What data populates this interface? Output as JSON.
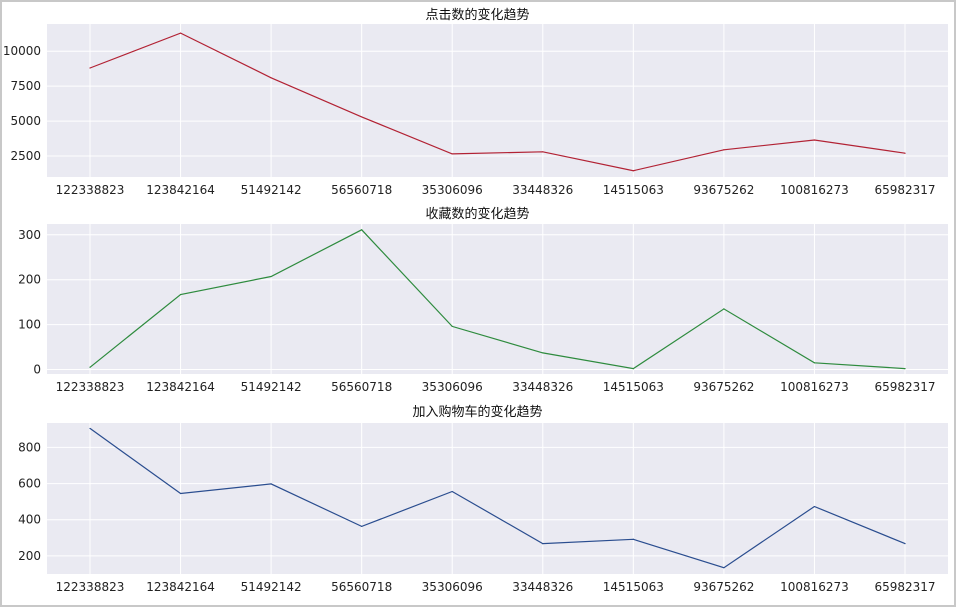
{
  "chart_data": [
    {
      "type": "line",
      "title": "点击数的变化趋势",
      "categories": [
        "122338823",
        "123842164",
        "51492142",
        "56560718",
        "35306096",
        "33448326",
        "14515063",
        "93675262",
        "100816273",
        "65982317"
      ],
      "series": [
        {
          "values": [
            8800,
            11300,
            8100,
            5300,
            2650,
            2800,
            1450,
            2950,
            3650,
            2700
          ]
        }
      ],
      "yticks": [
        2500,
        5000,
        7500,
        10000
      ],
      "ylim": [
        1000,
        11950
      ],
      "color": "#b22234",
      "grid": true,
      "xlabel": "",
      "ylabel": ""
    },
    {
      "type": "line",
      "title": "收藏数的变化趋势",
      "categories": [
        "122338823",
        "123842164",
        "51492142",
        "56560718",
        "35306096",
        "33448326",
        "14515063",
        "93675262",
        "100816273",
        "65982317"
      ],
      "series": [
        {
          "values": [
            5,
            167,
            207,
            311,
            96,
            37,
            2,
            135,
            15,
            2
          ]
        }
      ],
      "yticks": [
        0,
        100,
        200,
        300
      ],
      "ylim": [
        -10,
        324
      ],
      "color": "#2e8b3e",
      "grid": true,
      "xlabel": "",
      "ylabel": ""
    },
    {
      "type": "line",
      "title": "加入购物车的变化趋势",
      "categories": [
        "122338823",
        "123842164",
        "51492142",
        "56560718",
        "35306096",
        "33448326",
        "14515063",
        "93675262",
        "100816273",
        "65982317"
      ],
      "series": [
        {
          "values": [
            905,
            545,
            598,
            363,
            556,
            268,
            292,
            135,
            473,
            268
          ]
        }
      ],
      "yticks": [
        200,
        400,
        600,
        800
      ],
      "ylim": [
        100,
        935
      ],
      "color": "#2a4d8f",
      "grid": true,
      "xlabel": "",
      "ylabel": ""
    }
  ]
}
